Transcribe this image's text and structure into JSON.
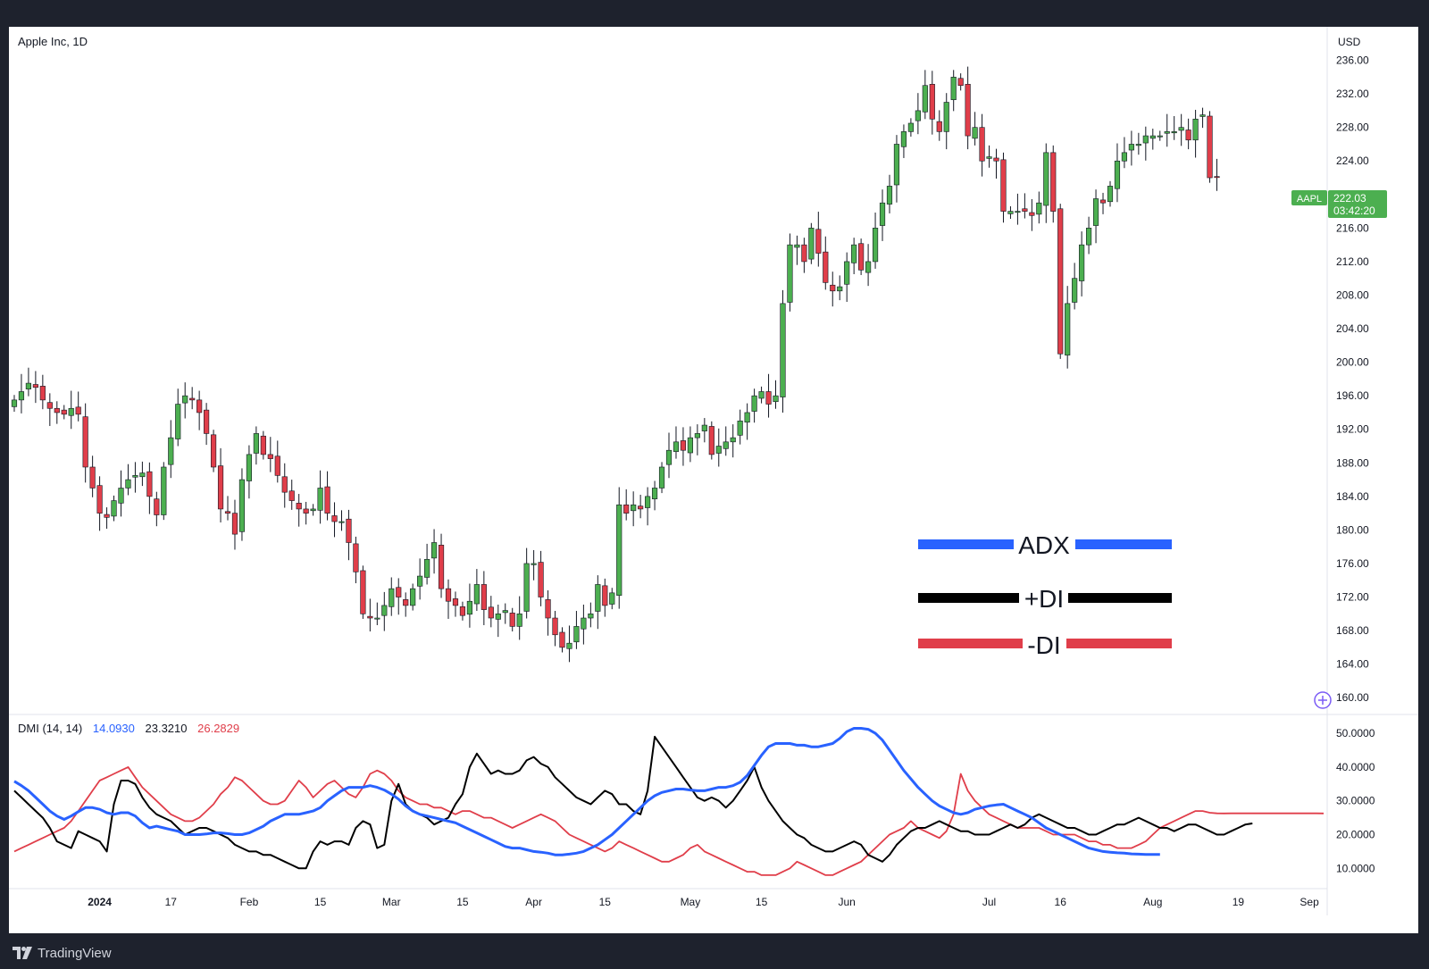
{
  "header": {
    "symbol_title": "Apple Inc, 1D",
    "currency": "USD",
    "indicator_label": "DMI (14, 14)",
    "adx_value": "14.0930",
    "plus_di_value": "23.3210",
    "minus_di_value": "26.2829"
  },
  "price_tag": {
    "ticker": "AAPL",
    "price": "222.03",
    "countdown": "03:42:20"
  },
  "legend": {
    "adx": "ADX",
    "plus_di": "+DI",
    "minus_di": "-DI"
  },
  "footer": {
    "brand": "TradingView"
  },
  "colors": {
    "up": "#4caf50",
    "down": "#e03e4a",
    "adx": "#2962ff",
    "plus_di": "#000000",
    "minus_di": "#e03e4a",
    "price_tag_bg": "#4caf50",
    "background_frame": "#1e222d"
  },
  "chart_data": [
    {
      "type": "candlestick",
      "title": "Apple Inc, 1D",
      "ylabel": "USD",
      "ylim": [
        158,
        240
      ],
      "y_ticks": [
        "236.00",
        "232.00",
        "228.00",
        "224.00",
        "220.00",
        "216.00",
        "212.00",
        "208.00",
        "204.00",
        "200.00",
        "196.00",
        "192.00",
        "188.00",
        "184.00",
        "180.00",
        "176.00",
        "172.00",
        "168.00",
        "164.00",
        "160.00"
      ],
      "x_ticks": [
        {
          "label": "2024",
          "index": 12
        },
        {
          "label": "17",
          "index": 22
        },
        {
          "label": "Feb",
          "index": 33
        },
        {
          "label": "15",
          "index": 43
        },
        {
          "label": "Mar",
          "index": 53
        },
        {
          "label": "15",
          "index": 63
        },
        {
          "label": "Apr",
          "index": 73
        },
        {
          "label": "15",
          "index": 83
        },
        {
          "label": "May",
          "index": 95
        },
        {
          "label": "15",
          "index": 105
        },
        {
          "label": "Jun",
          "index": 117
        },
        {
          "label": "Jul",
          "index": 137
        },
        {
          "label": "16",
          "index": 147
        },
        {
          "label": "Aug",
          "index": 160
        },
        {
          "label": "19",
          "index": 172
        },
        {
          "label": "Sep",
          "index": 182
        }
      ],
      "x_count": 185,
      "close_series": [
        195.5,
        196.5,
        197.5,
        197,
        195.5,
        194.5,
        194,
        193.8,
        194.5,
        193.8,
        187.5,
        185,
        182,
        181.5,
        183.5,
        185,
        186,
        186.5,
        186.8,
        184,
        181.8,
        187.5,
        191,
        195,
        196,
        195.5,
        194,
        191.5,
        187.5,
        182.5,
        182,
        179.5,
        186,
        189,
        191.5,
        189,
        188.5,
        186.5,
        184.5,
        183.5,
        182.5,
        182,
        182.5,
        185,
        182,
        181,
        181,
        178.5,
        175,
        170,
        169.5,
        169.5,
        171,
        173,
        172,
        171,
        173,
        174.5,
        176.5,
        178.5,
        173,
        171.5,
        171,
        169.8,
        171.5,
        173.5,
        170.5,
        169.5,
        170,
        170.4,
        168.5,
        170,
        176,
        176,
        172,
        169.5,
        167.5,
        166,
        166.5,
        168.5,
        169.5,
        170,
        173.5,
        171,
        172.5,
        183,
        182,
        183,
        182.5,
        184,
        185,
        187.5,
        189.5,
        190.5,
        189.5,
        191,
        191.5,
        192.5,
        189,
        190,
        190.5,
        191,
        193,
        194,
        196,
        196.5,
        195,
        196,
        207,
        214,
        214,
        212,
        216,
        213,
        209.5,
        208.5,
        209,
        212,
        214,
        211,
        212,
        216,
        219,
        221,
        226,
        227.5,
        228.5,
        230,
        233,
        229,
        227.5,
        231,
        234,
        233,
        227,
        228,
        224,
        224.5,
        224,
        218,
        218,
        218,
        218,
        217.5,
        219,
        225,
        218,
        201,
        207,
        210,
        214,
        216,
        219.5,
        219,
        221,
        224,
        225,
        226,
        226,
        227,
        227,
        227,
        227.5,
        227.5,
        228,
        226.5,
        229,
        229.5,
        222,
        222.03
      ],
      "series": [
        {
          "name": "ADX",
          "values": [
            35.8,
            34.5,
            33,
            31,
            29,
            27,
            25.5,
            24.5,
            25.5,
            26.8,
            28,
            28,
            27.5,
            26.5,
            26,
            26.5,
            26.5,
            25.5,
            23.5,
            22,
            22.5,
            22,
            21.5,
            21,
            20,
            20,
            20,
            20.2,
            20.5,
            20.5,
            20.3,
            20,
            20,
            20.5,
            21.5,
            22.5,
            24,
            25,
            26,
            26,
            26,
            26.5,
            27,
            28,
            30,
            31.5,
            33,
            34,
            34,
            34,
            34.5,
            34,
            33.2,
            32,
            30.5,
            28.5,
            27,
            26,
            25.5,
            25,
            24.5,
            24,
            23.5,
            22.5,
            21.5,
            20.5,
            19.5,
            18.5,
            17.5,
            16.5,
            16,
            16,
            15.5,
            15,
            14.8,
            14.5,
            14,
            14,
            14.2,
            14.5,
            15,
            16,
            17,
            18.5,
            20,
            22,
            24,
            26,
            28,
            30,
            31.5,
            32.5,
            33,
            33.5,
            33.5,
            33.2,
            33,
            33,
            33.5,
            34,
            34,
            34.5,
            35.5,
            37.5,
            40.5,
            43.5,
            46,
            47,
            47,
            47,
            46.5,
            46.5,
            46,
            46,
            46.5,
            47,
            48.5,
            50.5,
            51.5,
            51.5,
            51.2,
            50,
            48,
            45,
            42,
            39,
            36.5,
            34,
            32,
            30,
            28.5,
            27.5,
            26.5,
            26,
            26.5,
            27.5,
            28,
            28.5,
            28.8,
            29,
            28,
            27,
            26,
            25,
            23.5,
            22,
            21,
            20,
            19,
            18,
            17,
            16,
            15.5,
            15,
            14.8,
            14.6,
            14.5,
            14.3,
            14.2,
            14.1,
            14.1,
            14.093
          ]
        },
        {
          "name": "+DI",
          "values": [
            33,
            31,
            29,
            27,
            25,
            22,
            18,
            17,
            16,
            21,
            20,
            19,
            18,
            15,
            29,
            36,
            36,
            35,
            31,
            28,
            26,
            25,
            24,
            22,
            20,
            21,
            22,
            22,
            21,
            20,
            19,
            17,
            16,
            15,
            15,
            14,
            14,
            13,
            12,
            11,
            10,
            10,
            15,
            18,
            17,
            18,
            18,
            17,
            22,
            24,
            23,
            16,
            17,
            30,
            35,
            29,
            27,
            26,
            25,
            23,
            24,
            25,
            29,
            32,
            40,
            44,
            41,
            38,
            39,
            38,
            38,
            39,
            42,
            43,
            41,
            40,
            37,
            35,
            33,
            31,
            30,
            29,
            31,
            33,
            32,
            29,
            29,
            27,
            26,
            33,
            49,
            46,
            43,
            40,
            37,
            34,
            31,
            30,
            31,
            30,
            28,
            30,
            33,
            36,
            40,
            34,
            30,
            27,
            24,
            22,
            20,
            19,
            17,
            16,
            15,
            15,
            16,
            17,
            18,
            17,
            14,
            13,
            12,
            14,
            17,
            19,
            21,
            22,
            22,
            23,
            24,
            23,
            22,
            21,
            21,
            20,
            20,
            20,
            21,
            22,
            23,
            22,
            23,
            25,
            26,
            25,
            24,
            23,
            22,
            22,
            21,
            20,
            20,
            21,
            22,
            23,
            23,
            24,
            25,
            24,
            23,
            22,
            22,
            21,
            22,
            23,
            23,
            22,
            21,
            20,
            20,
            21,
            22,
            23,
            23.321
          ]
        },
        {
          "name": "-DI",
          "values": [
            15,
            16,
            17,
            18,
            19,
            20,
            21,
            22,
            24,
            27,
            30,
            33,
            36,
            37,
            38,
            39,
            40,
            37,
            34,
            32,
            30,
            28,
            26,
            25,
            24,
            24,
            25,
            27,
            29,
            32,
            34,
            37,
            36,
            34,
            32,
            30,
            29,
            29,
            30,
            33,
            36,
            34,
            31,
            33,
            35,
            36,
            34,
            32,
            31,
            34,
            38,
            39,
            38,
            36,
            33,
            31,
            30,
            29,
            29,
            28,
            28,
            27,
            26,
            27,
            27,
            26,
            25,
            25,
            24,
            23,
            22,
            23,
            24,
            25,
            26,
            25,
            24,
            22,
            20,
            19,
            18,
            17,
            16,
            15,
            16,
            18,
            17,
            16,
            15,
            14,
            13,
            12,
            12,
            13,
            14,
            16,
            17,
            15,
            14,
            13,
            12,
            11,
            10,
            9,
            9,
            8,
            8,
            8,
            9,
            10,
            12,
            11,
            10,
            9,
            8,
            8,
            9,
            10,
            11,
            12,
            14,
            16,
            18,
            20,
            21,
            22,
            24,
            22,
            21,
            20,
            19,
            21,
            26,
            38,
            33,
            30,
            28,
            26,
            25,
            24,
            23,
            22,
            22,
            22,
            22,
            21,
            20,
            20,
            20,
            20,
            19,
            18,
            18,
            17,
            17,
            16,
            16,
            16,
            17,
            18,
            20,
            22,
            23,
            24,
            25,
            26,
            27,
            27,
            26.5,
            26.3,
            26.2829,
            26.3,
            26.3,
            26.3,
            26.3,
            26.3,
            26.3,
            26.3,
            26.3,
            26.3,
            26.3,
            26.3,
            26.3,
            26.3,
            26.2829
          ]
        }
      ]
    }
  ]
}
